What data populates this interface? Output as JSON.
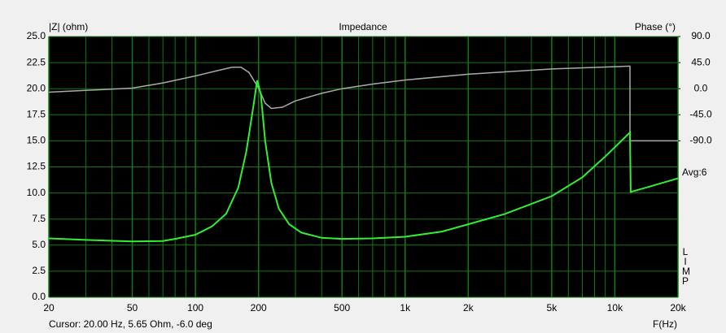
{
  "chart_data": {
    "type": "line",
    "title": "Impedance",
    "y_label": "|Z| (ohm)",
    "y2_label": "Phase (°)",
    "x_label": "F(Hz)",
    "annotation": "Avg:6",
    "program": "LIMP",
    "status": "Cursor: 20.00 Hz, 5.65 Ohm, -6.0 deg",
    "x_scale": "log",
    "xlim": [
      20,
      20000
    ],
    "xticks": [
      20,
      50,
      100,
      200,
      500,
      {
        "value": 1000,
        "label": "1k"
      },
      {
        "value": 2000,
        "label": "2k"
      },
      {
        "value": 5000,
        "label": "5k"
      },
      {
        "value": 10000,
        "label": "10k"
      },
      {
        "value": 20000,
        "label": "20k"
      }
    ],
    "ylim": [
      0,
      25
    ],
    "yticks": [
      {
        "value": 0,
        "label": "0.0"
      },
      {
        "value": 2.5,
        "label": "2.5"
      },
      {
        "value": 5,
        "label": "5.0"
      },
      {
        "value": 7.5,
        "label": "7.5"
      },
      {
        "value": 10,
        "label": "10.0"
      },
      {
        "value": 12.5,
        "label": "12.5"
      },
      {
        "value": 15,
        "label": "15.0"
      },
      {
        "value": 17.5,
        "label": "17.5"
      },
      {
        "value": 20,
        "label": "20.0"
      },
      {
        "value": 22.5,
        "label": "22.5"
      },
      {
        "value": 25,
        "label": "25.0"
      }
    ],
    "y2lim": [
      -360,
      90
    ],
    "y2ticks": [
      {
        "value": 90,
        "label": "90.0"
      },
      {
        "value": 45,
        "label": "45.0"
      },
      {
        "value": 0,
        "label": "0.0"
      },
      {
        "value": -45,
        "label": "-45.0"
      },
      {
        "value": -90,
        "label": "-90.0"
      }
    ],
    "grid": true,
    "minor_grid": true,
    "background": "#000000",
    "grid_color": "#127a12",
    "series": [
      {
        "color": "#aaaaaa",
        "axis": "y2",
        "x": [
          20,
          30,
          50,
          70,
          100,
          130,
          150,
          165,
          180,
          200,
          215,
          230,
          260,
          300,
          400,
          500,
          700,
          1000,
          2000,
          5000,
          10000,
          11800,
          11800,
          20000
        ],
        "values": [
          -6,
          -3,
          1,
          10,
          22,
          32,
          37,
          37,
          28,
          1,
          -25,
          -34,
          -32,
          -21,
          -8,
          0,
          8,
          15,
          25,
          34,
          38,
          39,
          -90,
          -90
        ]
      },
      {
        "color": "#33ee33",
        "x": [
          20,
          30,
          50,
          70,
          80,
          100,
          120,
          140,
          160,
          175,
          188,
          197,
          205,
          215,
          230,
          250,
          280,
          320,
          400,
          500,
          700,
          1000,
          1500,
          2000,
          3000,
          5000,
          7000,
          9000,
          11800,
          11900,
          14000,
          20000
        ],
        "values": [
          5.65,
          5.5,
          5.35,
          5.4,
          5.6,
          6.0,
          6.8,
          8.0,
          10.5,
          14,
          18,
          20.8,
          19.5,
          15,
          11,
          8.5,
          7,
          6.2,
          5.7,
          5.6,
          5.65,
          5.8,
          6.3,
          7.0,
          8.0,
          9.7,
          11.5,
          13.5,
          15.8,
          10.1,
          10.5,
          11.4
        ]
      }
    ]
  }
}
